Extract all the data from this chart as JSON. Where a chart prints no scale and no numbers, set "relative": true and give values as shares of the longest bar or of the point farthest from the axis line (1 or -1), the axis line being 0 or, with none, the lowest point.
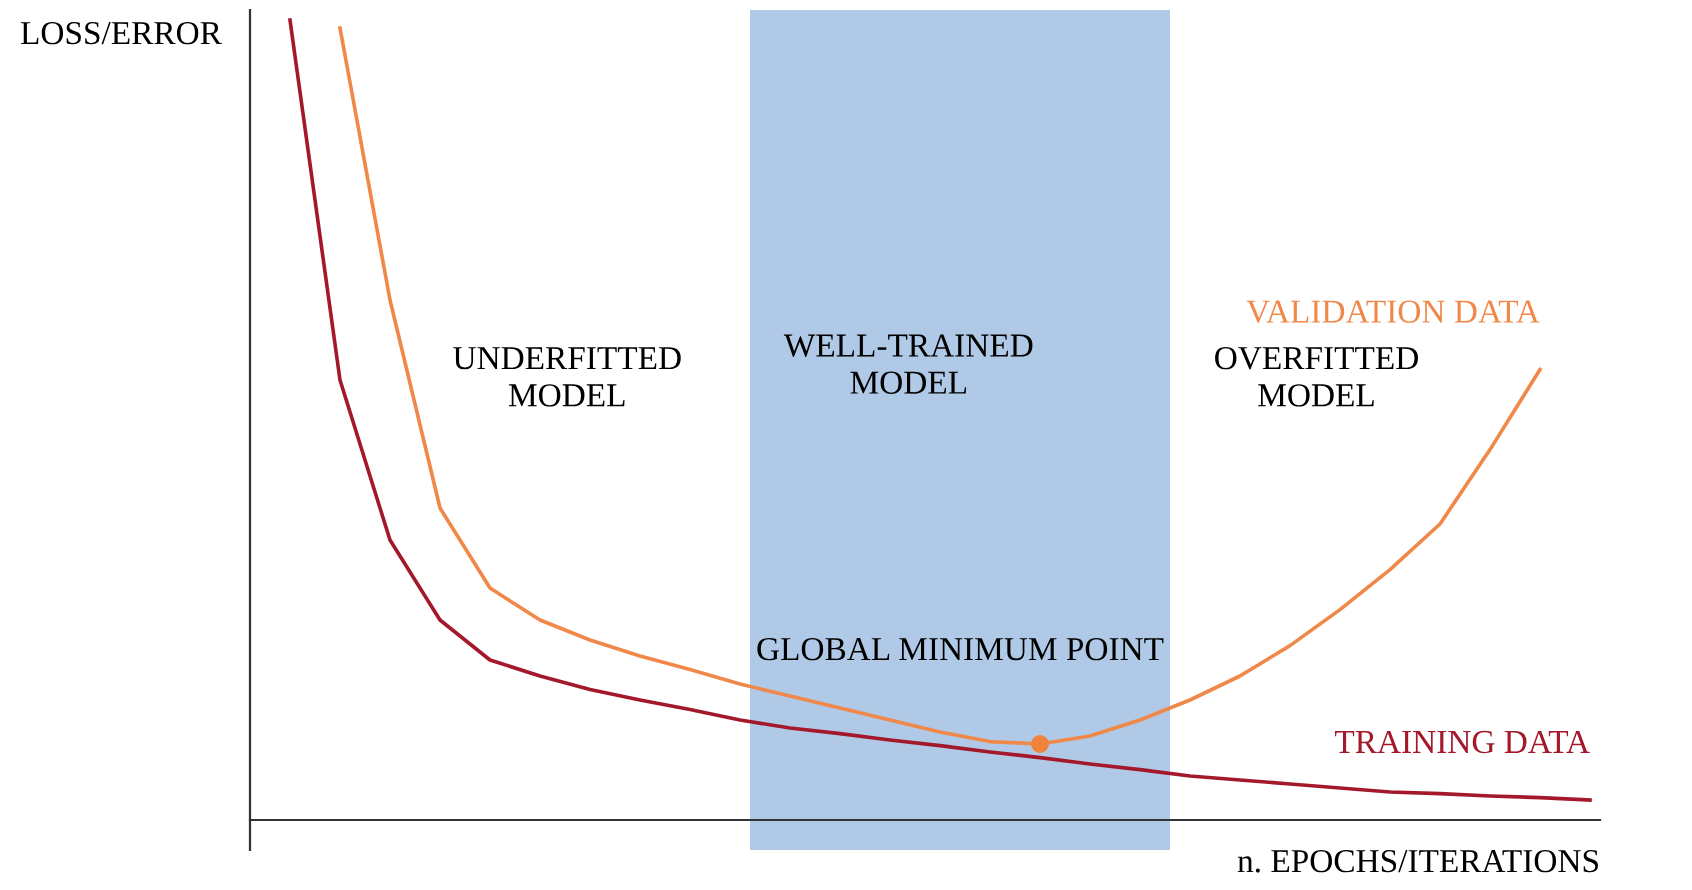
{
  "chart_data": {
    "type": "line",
    "relative": true,
    "xlabel": "n. EPOCHS/ITERATIONS",
    "ylabel": "LOSS/ERROR",
    "legend": false,
    "categories": [
      null,
      null,
      null,
      null,
      null,
      null,
      null,
      null,
      null,
      null,
      null,
      null,
      null,
      null,
      null,
      null,
      null,
      null,
      null,
      null,
      null,
      null,
      null,
      null,
      null,
      null,
      null
    ],
    "series": [
      {
        "name": "TRAINING DATA",
        "color": "#a3192b",
        "values": [
          1.0,
          0.55,
          0.35,
          0.25,
          0.2,
          0.18,
          0.163,
          0.15,
          0.138,
          0.125,
          0.115,
          0.108,
          0.1,
          0.093,
          0.085,
          0.078,
          0.07,
          0.063,
          0.055,
          0.05,
          0.045,
          0.04,
          0.035,
          0.033,
          0.03,
          0.028,
          0.025
        ]
      },
      {
        "name": "VALIDATION DATA",
        "color": "#f0884a",
        "values": [
          null,
          0.99,
          0.65,
          0.39,
          0.29,
          0.25,
          0.225,
          0.205,
          0.188,
          0.17,
          0.155,
          0.14,
          0.125,
          0.11,
          0.098,
          0.095,
          0.105,
          0.125,
          0.15,
          0.18,
          0.218,
          0.263,
          0.313,
          0.37,
          0.463,
          0.563,
          null
        ]
      }
    ],
    "annotations": [
      "UNDERFITTED\nMODEL",
      "WELL-TRAINED\nMODEL",
      "OVERFITTED\nMODEL",
      {
        "text": "GLOBAL MINIMUM POINT",
        "y": 0.095
      }
    ]
  }
}
